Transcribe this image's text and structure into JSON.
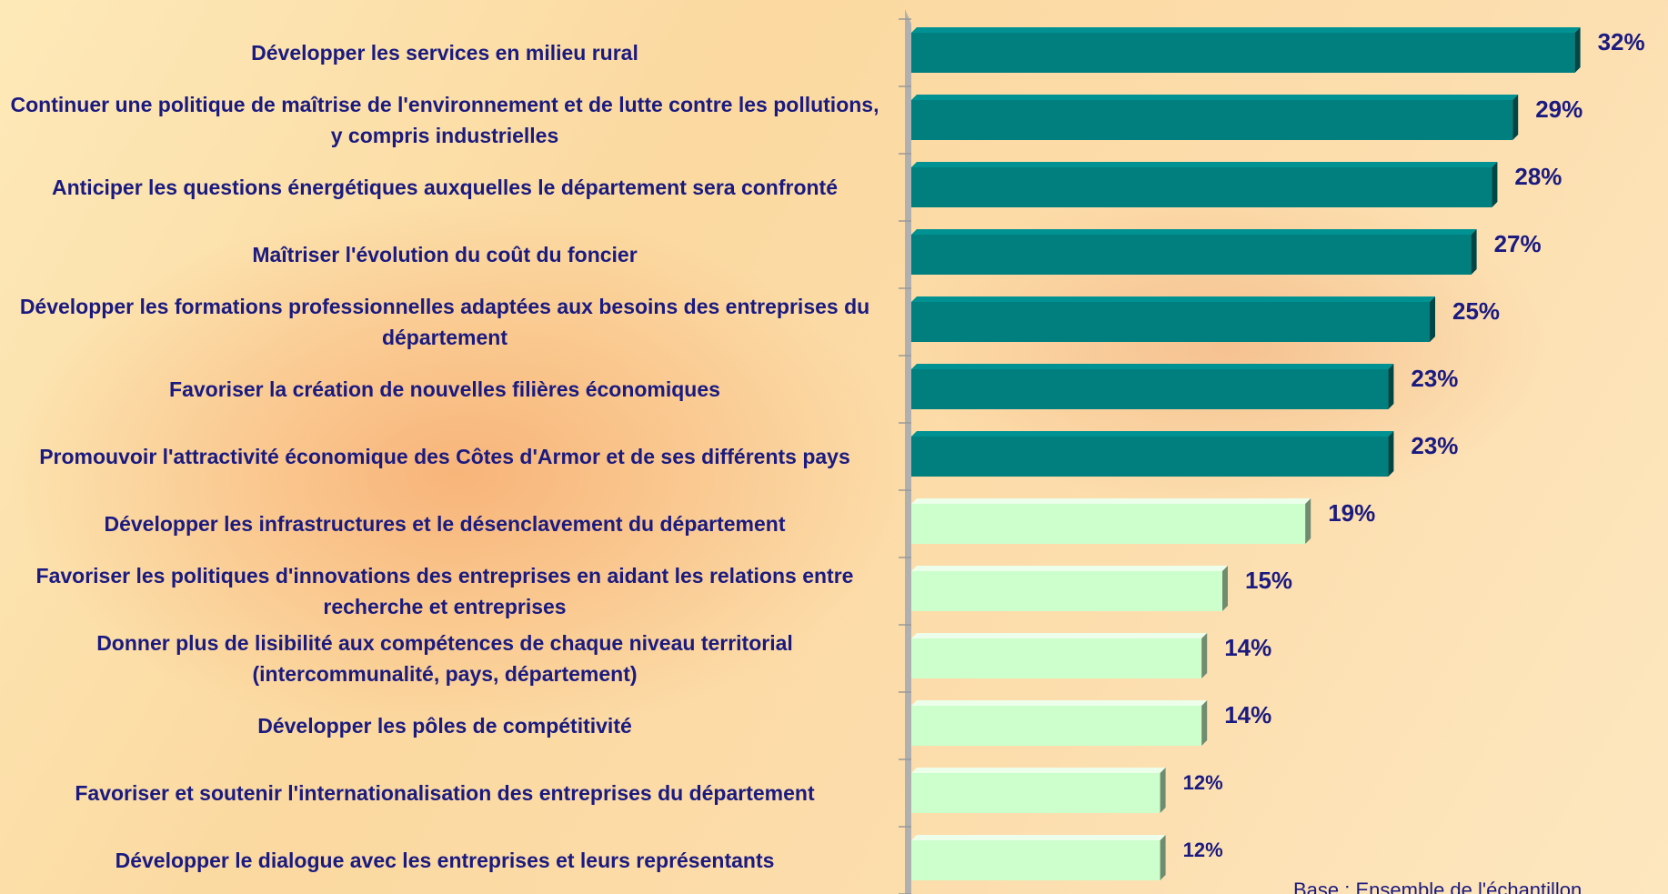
{
  "chart_data": {
    "type": "bar",
    "orientation": "horizontal",
    "categories": [
      "Développer les services en milieu rural",
      "Continuer une politique de maîtrise de l'environnement et de lutte contre les pollutions, y compris industrielles",
      "Anticiper les questions énergétiques auxquelles le département sera confronté",
      "Maîtriser l'évolution du coût du foncier",
      "Développer les formations professionnelles adaptées aux besoins des entreprises du département",
      "Favoriser la création de nouvelles filières économiques",
      "Promouvoir l'attractivité économique des Côtes d'Armor et de ses différents pays",
      "Développer les infrastructures et le désenclavement du département",
      "Favoriser les politiques d'innovations des entreprises en aidant les relations entre recherche et entreprises",
      "Donner plus de lisibilité aux compétences de chaque niveau territorial (intercommunalité, pays, département)",
      "Développer les pôles de compétitivité",
      "Favoriser et soutenir l'internationalisation des entreprises du département",
      "Développer le dialogue avec les entreprises et leurs représentants"
    ],
    "values": [
      32,
      29,
      28,
      27,
      25,
      23,
      23,
      19,
      15,
      14,
      14,
      12,
      12
    ],
    "value_labels": [
      "32%",
      "29%",
      "28%",
      "27%",
      "25%",
      "23%",
      "23%",
      "19%",
      "15%",
      "14%",
      "14%",
      "12%",
      "12%"
    ],
    "colors": [
      "#007f7f",
      "#007f7f",
      "#007f7f",
      "#007f7f",
      "#007f7f",
      "#007f7f",
      "#007f7f",
      "#ccffcc",
      "#ccffcc",
      "#ccffcc",
      "#ccffcc",
      "#ccffcc",
      "#ccffcc"
    ],
    "xlim": [
      0,
      35
    ],
    "note": "Base : Ensemble de l'échantillon"
  }
}
